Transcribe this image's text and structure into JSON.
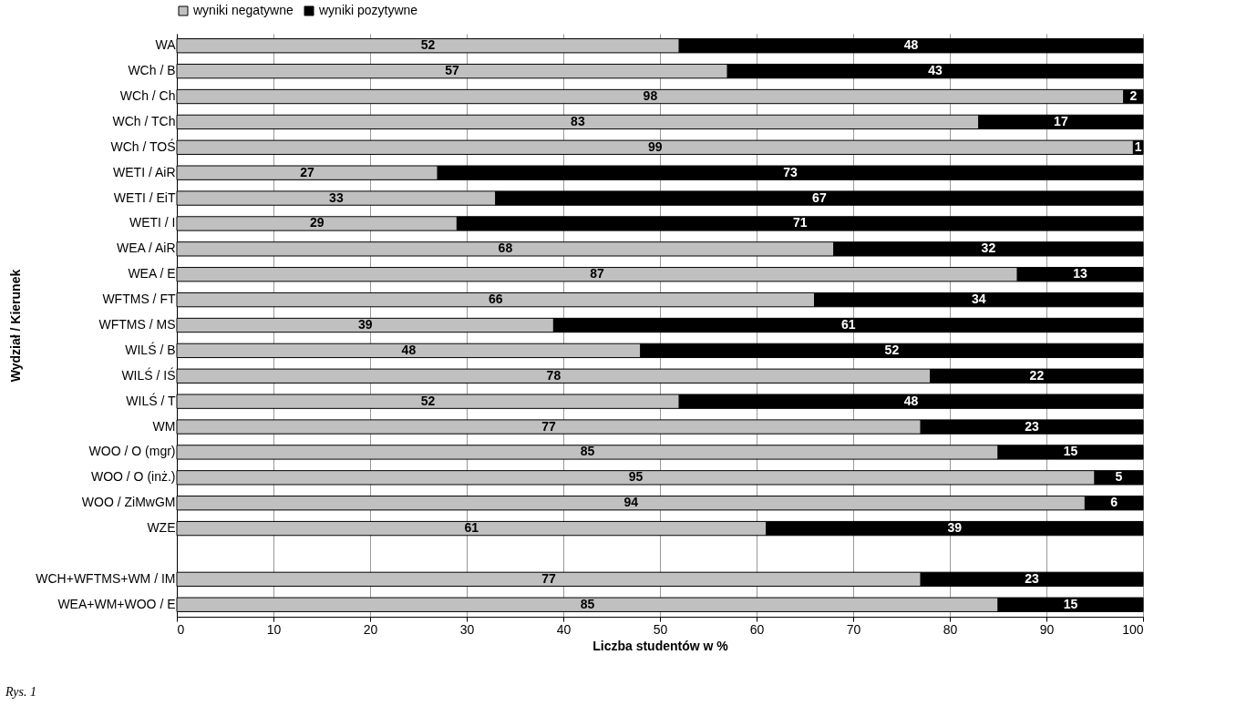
{
  "chart_data": {
    "type": "bar",
    "orientation": "horizontal",
    "stacked": true,
    "xlabel": "Liczba studentów w %",
    "ylabel": "Wydział / Kierunek",
    "categories": [
      "WA",
      "WCh / B",
      "WCh / Ch",
      "WCh / TCh",
      "WCh / TOŚ",
      "WETI / AiR",
      "WETI / EiT",
      "WETI / I",
      "WEA / AiR",
      "WEA / E",
      "WFTMS / FT",
      "WFTMS / MS",
      "WILŚ / B",
      "WILŚ / IŚ",
      "WILŚ / T",
      "WM",
      "WOO / O (mgr)",
      "WOO / O (inż.)",
      "WOO / ZiMwGM",
      "WZE",
      null,
      "WCH+WFTMS+WM / IM",
      "WEA+WM+WOO / E"
    ],
    "series": [
      {
        "name": "wyniki negatywne",
        "color": "#c0c0c0",
        "values": [
          52,
          57,
          98,
          83,
          99,
          27,
          33,
          29,
          68,
          87,
          66,
          39,
          48,
          78,
          52,
          77,
          85,
          95,
          94,
          61,
          null,
          77,
          85
        ]
      },
      {
        "name": "wyniki pozytywne",
        "color": "#000000",
        "values": [
          48,
          43,
          2,
          17,
          1,
          73,
          67,
          71,
          32,
          13,
          34,
          61,
          52,
          22,
          48,
          23,
          15,
          5,
          6,
          39,
          null,
          23,
          15
        ]
      }
    ],
    "xlim": [
      0,
      100
    ],
    "xticks": [
      0,
      10,
      20,
      30,
      40,
      50,
      60,
      70,
      80,
      90,
      100
    ],
    "grid": "x",
    "legend": "top",
    "data_labels": true,
    "annotations": [
      "Rys. 1"
    ]
  }
}
